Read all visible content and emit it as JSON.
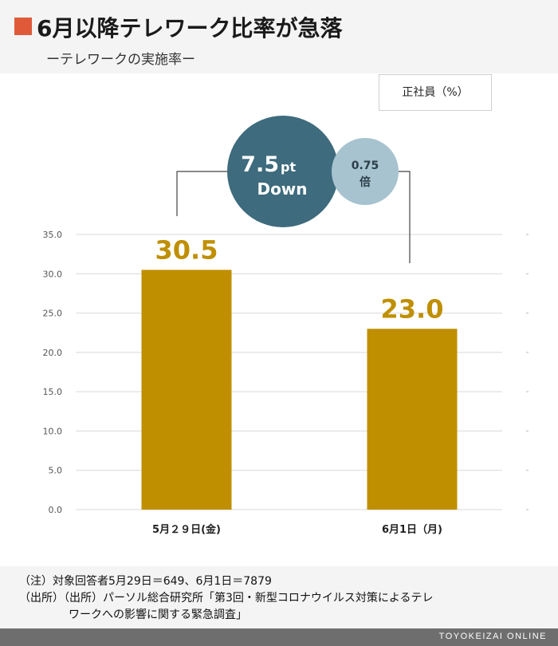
{
  "header": {
    "title": "6月以降テレワーク比率が急落",
    "subtitle": "ーテレワークの実施率ー",
    "accent_color": "#e05a3a"
  },
  "unit_label": "正社員（%）",
  "callout": {
    "diff_value": "7.5",
    "diff_unit": "pt",
    "diff_word": "Down",
    "ratio_value": "0.75",
    "ratio_unit": "倍",
    "dark_color": "#3e6b7d",
    "light_color": "#a6c3cf"
  },
  "chart_data": {
    "type": "bar",
    "categories": [
      "5月２９日(金)",
      "6月1日（月)"
    ],
    "values": [
      30.5,
      23.0
    ],
    "data_labels": [
      "30.5",
      "23.0"
    ],
    "yticks": [
      "35.0",
      "30.0",
      "25.0",
      "20.0",
      "15.0",
      "10.0",
      "5.0",
      "0.0"
    ],
    "ylim": [
      0,
      35
    ],
    "grid": true,
    "bar_color": "#bf8f00"
  },
  "notes": {
    "line1": "（注）対象回答者5月29日＝649、6月1日＝7879",
    "line2": "（出所）（出所）パーソル総合研究所「第3回・新型コロナウイルス対策によるテレ",
    "line3": "ワークへの影響に関する緊急調査」"
  },
  "footer": {
    "brand": "TOYOKEIZAI ONLINE"
  }
}
